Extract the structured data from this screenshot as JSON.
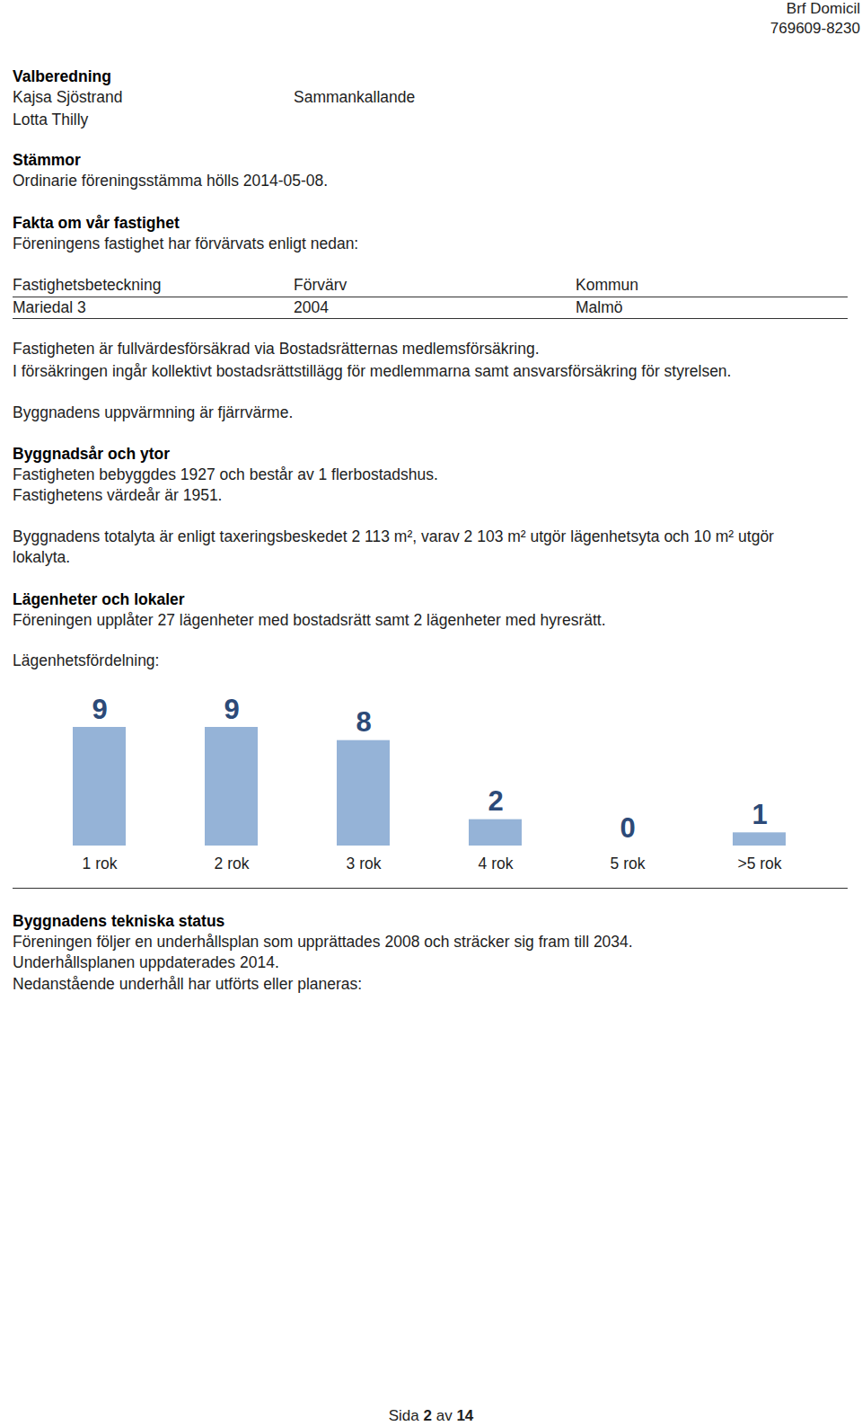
{
  "header": {
    "lines": [
      "Brf Domicil",
      "769609-8230"
    ]
  },
  "valberedning": {
    "heading": "Valberedning",
    "members": [
      {
        "name": "Kajsa Sjöstrand",
        "role": "Sammankallande"
      },
      {
        "name": "Lotta Thilly"
      }
    ]
  },
  "stammor": {
    "heading": "Stämmor",
    "lines": [
      "Ordinarie föreningsstämma hölls 2014-05-08."
    ]
  },
  "fakta": {
    "heading": "Fakta om vår fastighet",
    "lines": [
      "Föreningens fastighet har förvärvats enligt nedan:"
    ],
    "table": {
      "columns": [
        "Fastighetsbeteckning",
        "Förvärv",
        "Kommun"
      ],
      "rows": [
        [
          "Mariedal 3",
          "2004",
          "Malmö"
        ]
      ]
    },
    "paragraphs": [
      [
        "Fastigheten är fullvärdesförsäkrad via Bostadsrätternas medlemsförsäkring.",
        "I försäkringen ingår kollektivt bostadsrättstillägg för medlemmarna samt ansvarsförsäkring för styrelsen."
      ],
      [
        "Byggnadens uppvärmning är fjärrvärme."
      ]
    ]
  },
  "byggnadsar": {
    "heading": "Byggnadsår och ytor",
    "paragraphs": [
      [
        "Fastigheten bebyggdes 1927 och består av 1 flerbostadshus.",
        "Fastighetens värdeår är 1951."
      ],
      [
        "Byggnadens totalyta är enligt taxeringsbeskedet 2 113 m², varav 2 103 m² utgör lägenhetsyta och 10 m² utgör lokalyta."
      ]
    ]
  },
  "lagenheter": {
    "heading": "Lägenheter och lokaler",
    "paragraphs": [
      [
        "Föreningen upplåter 27 lägenheter med bostadsrätt samt 2 lägenheter med hyresrätt."
      ],
      [
        "Lägenhetsfördelning:"
      ]
    ]
  },
  "chart_data": {
    "type": "bar",
    "categories": [
      "1 rok",
      "2 rok",
      "3 rok",
      "4 rok",
      "5 rok",
      ">5 rok"
    ],
    "values": [
      9,
      9,
      8,
      2,
      0,
      1
    ],
    "color": "#95b3d7",
    "ylim": [
      0,
      9
    ],
    "data_labels": true,
    "tick_labels": "x",
    "grid": false
  },
  "teknisk": {
    "heading": "Byggnadens tekniska status",
    "lines": [
      "Föreningen följer en underhållsplan som upprättades 2008 och sträcker sig fram till 2034.",
      "Underhållsplanen uppdaterades 2014.",
      "Nedanstående underhåll har utförts eller planeras:"
    ]
  },
  "footer": {
    "parts": [
      "Sida",
      "2",
      "av",
      "14"
    ]
  }
}
